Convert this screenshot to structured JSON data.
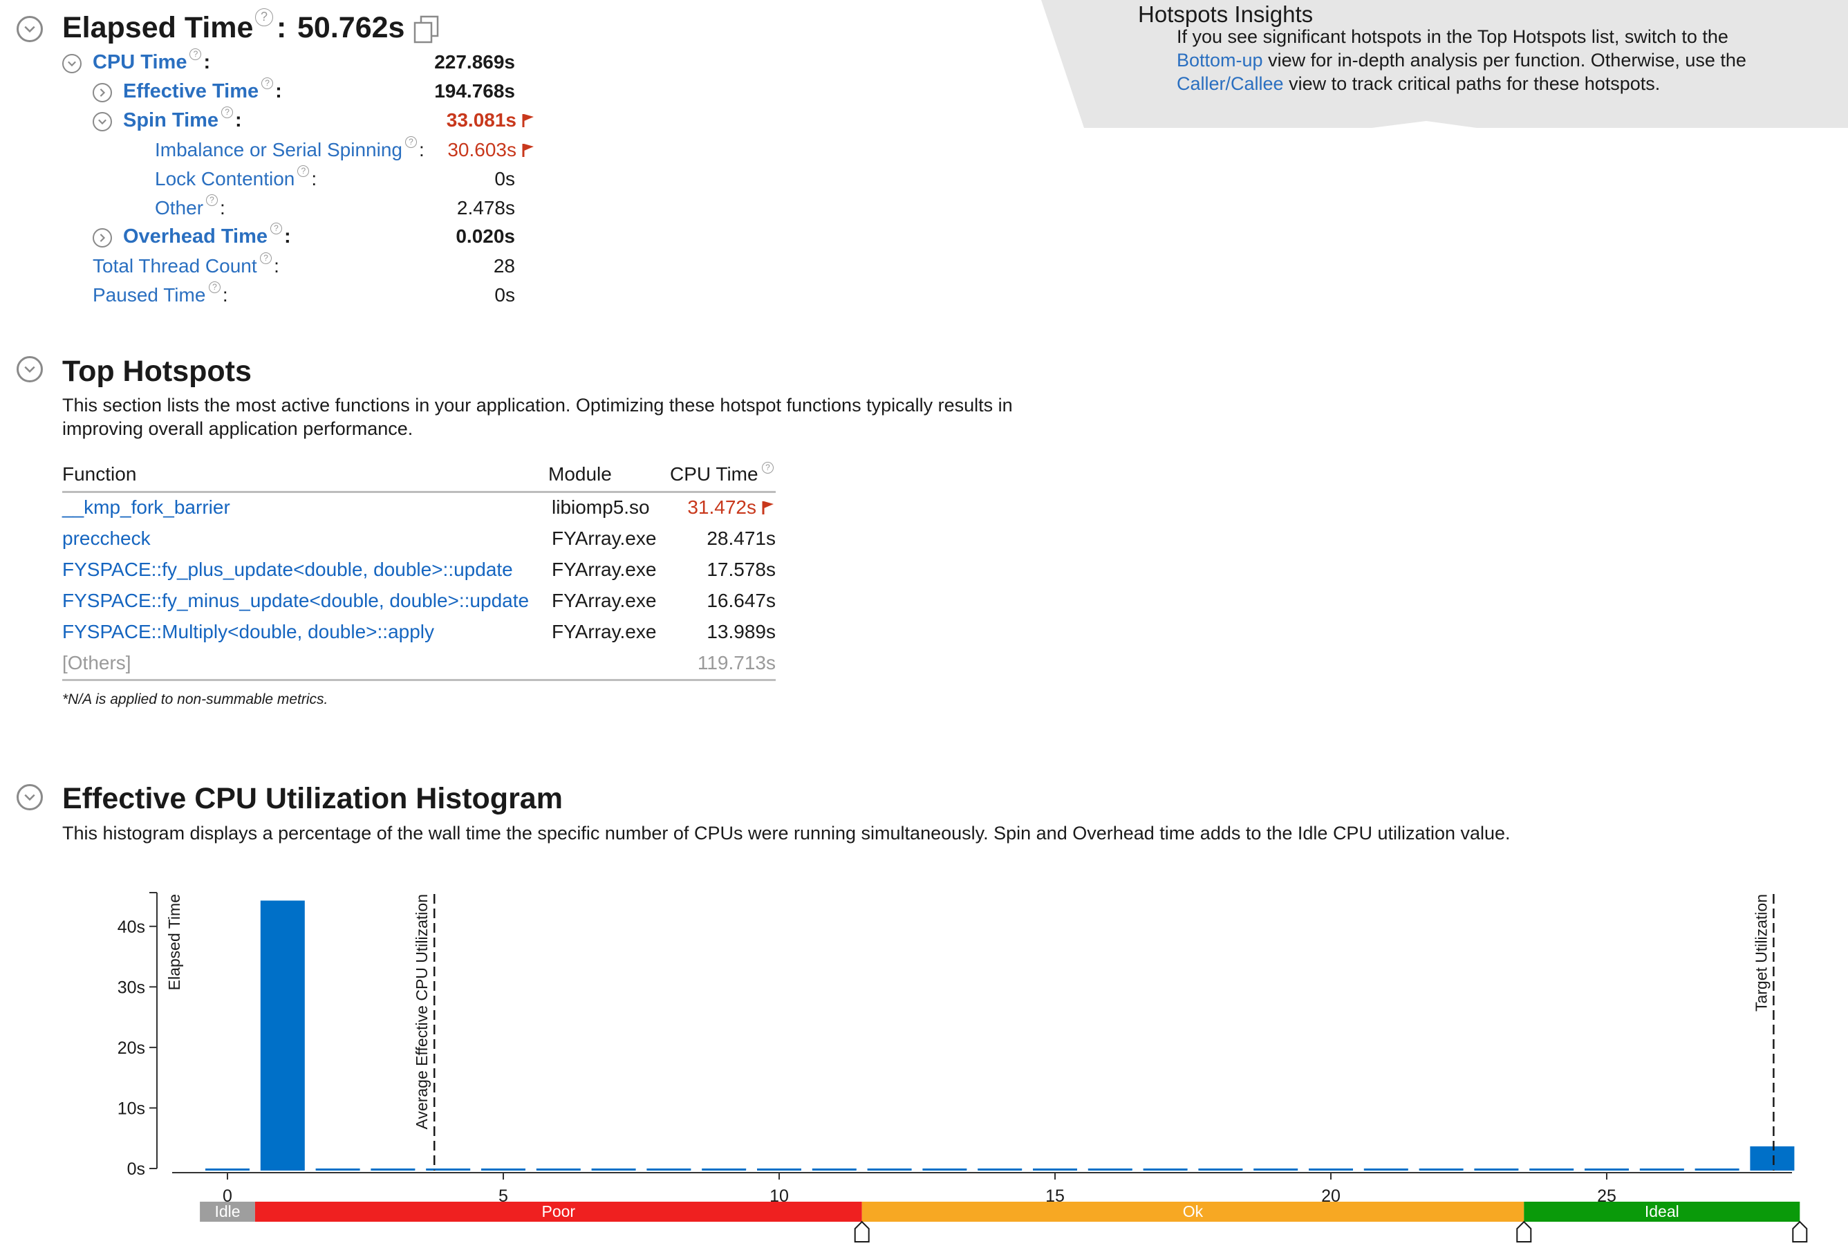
{
  "elapsed": {
    "title": "Elapsed Time",
    "colon": ":",
    "value": "50.762s",
    "help_glyph": "?",
    "toggle_icon": "chevron-down-icon",
    "copy_icon": "copy-icon"
  },
  "metrics": [
    {
      "key": "cpu_time",
      "label": "CPU Time",
      "suffix": ":",
      "value": "227.869s",
      "style": "bold",
      "toggle": "expanded"
    },
    {
      "key": "effective_time",
      "label": "Effective Time",
      "suffix": ":",
      "value": "194.768s",
      "style": "bold",
      "toggle": "collapsed"
    },
    {
      "key": "spin_time",
      "label": "Spin Time",
      "suffix": ":",
      "value": "33.081s",
      "style": "bold-red",
      "toggle": "expanded",
      "flag": true
    },
    {
      "key": "imbalance",
      "label": "Imbalance or Serial Spinning",
      "suffix": ":",
      "value": "30.603s",
      "style": "red",
      "flag": true
    },
    {
      "key": "lock_contention",
      "label": "Lock Contention",
      "suffix": ":",
      "value": "0s",
      "style": "normal"
    },
    {
      "key": "other",
      "label": "Other",
      "suffix": ":",
      "value": "2.478s",
      "style": "normal"
    },
    {
      "key": "overhead_time",
      "label": "Overhead Time",
      "suffix": ":",
      "value": "0.020s",
      "style": "bold",
      "toggle": "collapsed"
    },
    {
      "key": "thread_count",
      "label": "Total Thread Count",
      "suffix": ":",
      "value": "28",
      "style": "normal"
    },
    {
      "key": "paused_time",
      "label": "Paused Time",
      "suffix": ":",
      "value": "0s",
      "style": "normal"
    }
  ],
  "insights": {
    "title": "Hotspots Insights",
    "line1": "If you see significant hotspots in the Top Hotspots list, switch to the",
    "link1": "Bottom-up",
    "line2_rest": " view for in-depth analysis per function. Otherwise, use the",
    "link2": "Caller/Callee",
    "line3_rest": " view to track critical paths for these hotspots."
  },
  "top_hotspots": {
    "title": "Top Hotspots",
    "description_line1": "This section lists the most active functions in your application. Optimizing these hotspot functions typically results in",
    "description_line2": "improving overall application performance.",
    "columns": [
      "Function",
      "Module",
      "CPU Time"
    ],
    "rows": [
      {
        "function": "__kmp_fork_barrier",
        "module": "libiomp5.so",
        "cpu_time": "31.472s",
        "flag": true
      },
      {
        "function": "preccheck",
        "module": "FYArray.exe",
        "cpu_time": "28.471s"
      },
      {
        "function": "FYSPACE::fy_plus_update<double, double>::update",
        "module": "FYArray.exe",
        "cpu_time": "17.578s"
      },
      {
        "function": "FYSPACE::fy_minus_update<double, double>::update",
        "module": "FYArray.exe",
        "cpu_time": "16.647s"
      },
      {
        "function": "FYSPACE::Multiply<double, double>::apply",
        "module": "FYArray.exe",
        "cpu_time": "13.989s"
      }
    ],
    "others": {
      "function": "[Others]",
      "cpu_time": "119.713s"
    },
    "footnote": "*N/A is applied to non-summable metrics."
  },
  "histogram": {
    "title": "Effective CPU Utilization Histogram",
    "description": "This histogram displays a percentage of the wall time the specific number of CPUs were running simultaneously. Spin and Overhead time adds to the Idle CPU utilization value.",
    "zones": [
      {
        "label": "Idle",
        "color": "#9e9e9e"
      },
      {
        "label": "Poor",
        "color": "#ef2020"
      },
      {
        "label": "Ok",
        "color": "#f7a823"
      },
      {
        "label": "Ideal",
        "color": "#0a9a0a"
      }
    ]
  },
  "chart_data": {
    "type": "bar",
    "title": "",
    "ylabel": "Elapsed Time",
    "xlabel": "",
    "ylim": [
      0,
      45
    ],
    "xlim": [
      0,
      28
    ],
    "yticks": [
      "0s",
      "10s",
      "20s",
      "30s",
      "40s"
    ],
    "xticks": [
      0,
      5,
      10,
      15,
      20,
      25
    ],
    "bar_color": "#0070c8",
    "x": [
      0,
      1,
      2,
      3,
      4,
      5,
      6,
      7,
      8,
      9,
      10,
      11,
      12,
      13,
      14,
      15,
      16,
      17,
      18,
      19,
      20,
      21,
      22,
      23,
      24,
      25,
      26,
      27,
      28
    ],
    "values": [
      0.1,
      44.6,
      0.1,
      0.1,
      0.1,
      0.1,
      0.1,
      0.1,
      0.1,
      0.1,
      0.1,
      0.1,
      0.1,
      0.1,
      0.3,
      0.1,
      0.1,
      0.1,
      0.1,
      0.1,
      0.1,
      0.1,
      0.1,
      0.1,
      0.1,
      0.1,
      0.1,
      0.1,
      4.0
    ],
    "annotations": [
      {
        "label": "Average Effective CPU Utilization",
        "x": 3.8
      },
      {
        "label": "Target Utilization",
        "x": 28.0
      }
    ],
    "zone_bounds": [
      {
        "label": "Idle",
        "from": -0.5,
        "to": 0.5
      },
      {
        "label": "Poor",
        "from": 0.5,
        "to": 11.5
      },
      {
        "label": "Ok",
        "from": 11.5,
        "to": 23.5
      },
      {
        "label": "Ideal",
        "from": 23.5,
        "to": 28.5
      }
    ],
    "markers": [
      11.5,
      23.5,
      28.5
    ]
  }
}
